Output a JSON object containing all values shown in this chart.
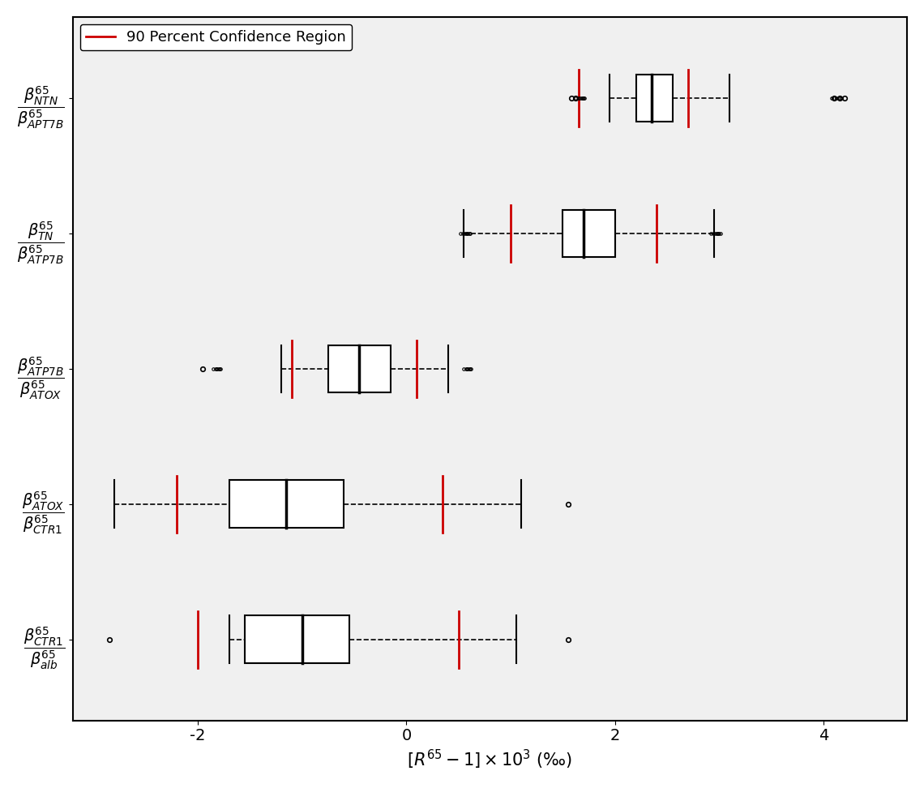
{
  "title": "",
  "xlabel": "$[R^{65}-1] \\times 10^3$ (\\textperthousand)",
  "xlim": [
    -3.2,
    4.8
  ],
  "xticks": [
    -2,
    0,
    2,
    4
  ],
  "background_color": "#f0f0f0",
  "legend_label": "90 Percent Confidence Region",
  "legend_color": "#cc0000",
  "box_color": "black",
  "whisker_color": "black",
  "median_color": "black",
  "outlier_color": "black",
  "ci_color": "#cc0000",
  "rows": [
    {
      "label_num": "$\\\\beta^{65}_{NTN}$",
      "label_den": "$\\\\beta^{65}_{APT7B}$",
      "median": 2.35,
      "q1": 2.2,
      "q3": 2.55,
      "whisker_low": 1.95,
      "whisker_high": 3.1,
      "ci_low": 1.65,
      "ci_high": 2.7,
      "outliers": [
        1.58,
        1.62,
        4.1,
        4.15,
        4.2
      ],
      "flier_low": [
        1.58,
        1.62
      ],
      "flier_high": [
        4.1,
        4.15,
        4.2
      ],
      "cluster_low_x": [
        1.62,
        1.65,
        1.67,
        1.68,
        1.69,
        1.7,
        1.71
      ],
      "cluster_high_x": [
        4.08,
        4.1,
        4.12,
        4.15,
        4.17
      ]
    },
    {
      "label_num": "$\\\\beta^{65}_{TN}$",
      "label_den": "$\\\\beta^{65}_{ATP7B}$",
      "median": 1.7,
      "q1": 1.5,
      "q3": 2.0,
      "whisker_low": 0.55,
      "whisker_high": 2.95,
      "ci_low": 1.0,
      "ci_high": 2.4,
      "cluster_low_x": [
        0.52,
        0.54,
        0.56,
        0.57,
        0.58,
        0.59,
        0.6,
        0.61
      ],
      "cluster_high_x": [
        2.92,
        2.94,
        2.96,
        2.97,
        2.98,
        2.99,
        3.0,
        3.01
      ]
    },
    {
      "label_num": "$\\\\beta^{65}_{ATP7B}$",
      "label_den": "$\\\\beta^{65}_{ATOX}$",
      "median": -0.45,
      "q1": -0.75,
      "q3": -0.15,
      "whisker_low": -1.2,
      "whisker_high": 0.4,
      "ci_low": -1.1,
      "ci_high": 0.1,
      "cluster_low_x": [
        -1.85,
        -1.83,
        -1.82,
        -1.81,
        -1.8,
        -1.79,
        -1.78
      ],
      "cluster_high_x": [
        0.55,
        0.57,
        0.58,
        0.59,
        0.6,
        0.61,
        0.62
      ],
      "flier_low_single": -1.95
    },
    {
      "label_num": "$\\\\beta^{65}_{ATOX}$",
      "label_den": "$\\\\beta^{65}_{CTR1}$",
      "median": -1.15,
      "q1": -1.7,
      "q3": -0.6,
      "whisker_low": -2.8,
      "whisker_high": 1.1,
      "ci_low": -2.2,
      "ci_high": 0.35,
      "flier_high_single": 1.55
    },
    {
      "label_num": "$\\\\beta^{65}_{CTR1}$",
      "label_den": "$\\\\beta^{65}_{alb}$",
      "median": -1.0,
      "q1": -1.55,
      "q3": -0.55,
      "whisker_low": -1.7,
      "whisker_high": 1.05,
      "ci_low": -2.0,
      "ci_high": 0.5,
      "flier_low_single": -2.85,
      "flier_high_single": 1.55
    }
  ]
}
